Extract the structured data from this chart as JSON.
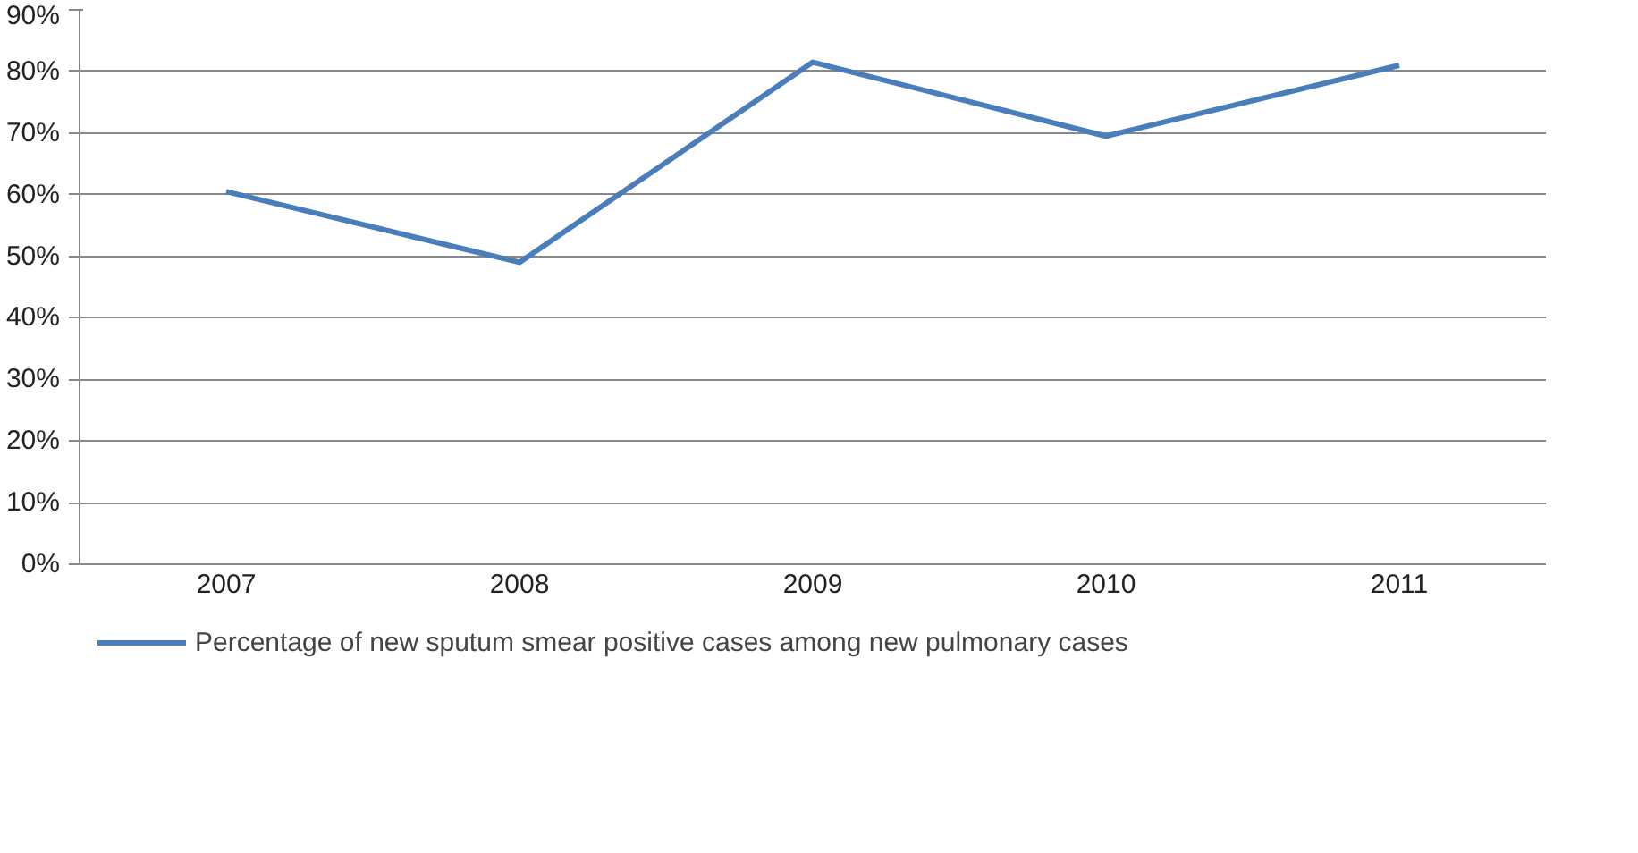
{
  "chart_data": {
    "type": "line",
    "categories": [
      "2007",
      "2008",
      "2009",
      "2010",
      "2011"
    ],
    "series": [
      {
        "name": "Percentage of new sputum smear positive cases among new pulmonary cases",
        "color": "#4a7ebb",
        "values": [
          60.5,
          49,
          81.5,
          69.5,
          81
        ]
      }
    ],
    "ylim": [
      0,
      90
    ],
    "yticks": [
      {
        "value": 0,
        "label": "0%"
      },
      {
        "value": 10,
        "label": "10%"
      },
      {
        "value": 20,
        "label": "20%"
      },
      {
        "value": 30,
        "label": "30%"
      },
      {
        "value": 40,
        "label": "40%"
      },
      {
        "value": 50,
        "label": "50%"
      },
      {
        "value": 60,
        "label": "60%"
      },
      {
        "value": 70,
        "label": "70%"
      },
      {
        "value": 80,
        "label": "80%"
      },
      {
        "value": 90,
        "label": "90%"
      }
    ],
    "grid": "y",
    "legend": "bottom",
    "marker": "none",
    "line_style": "solid"
  }
}
